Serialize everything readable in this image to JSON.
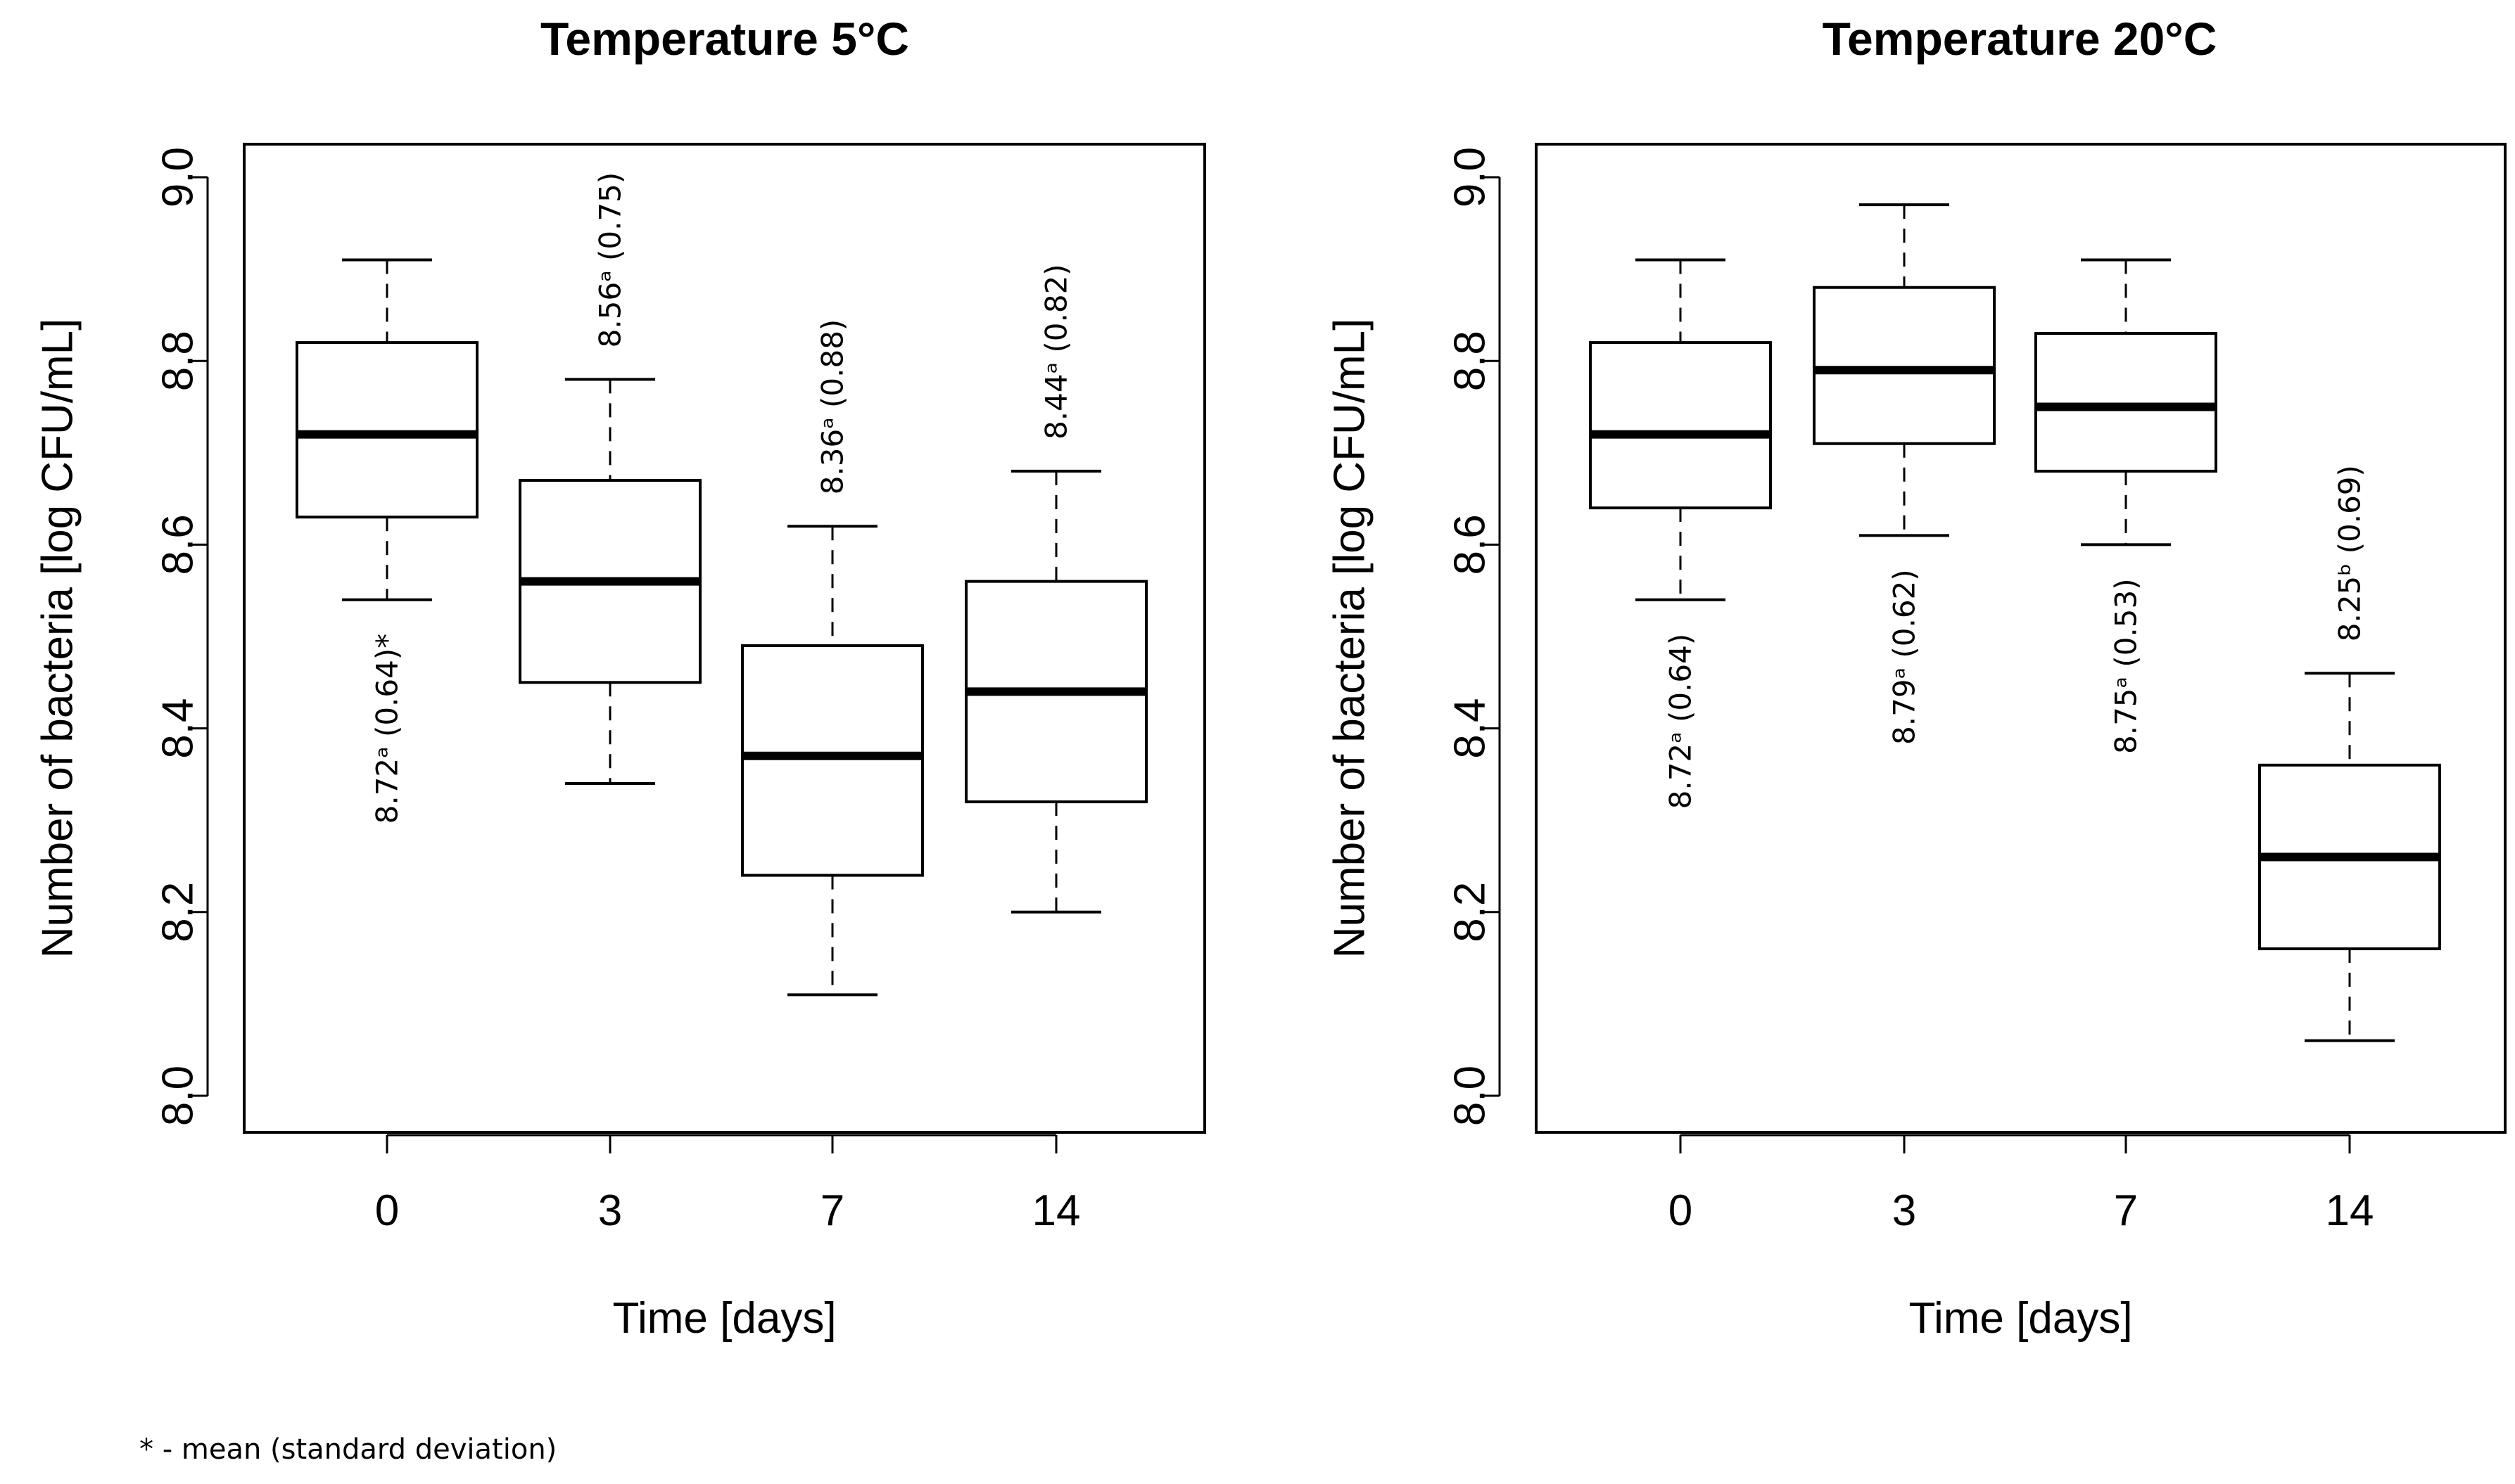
{
  "chart_data": [
    {
      "type": "boxplot",
      "title": "Temperature 5°C",
      "xlabel": "Time [days]",
      "ylabel": "Number of bacteria [log CFU/mL]",
      "ylim": [
        8.0,
        9.0
      ],
      "yticks": [
        "8.0",
        "8.2",
        "8.4",
        "8.6",
        "8.8",
        "9.0"
      ],
      "categories": [
        "0",
        "3",
        "7",
        "14"
      ],
      "boxes": [
        {
          "whisker_low": 8.54,
          "q1": 8.63,
          "median": 8.72,
          "q3": 8.82,
          "whisker_high": 8.91,
          "annotation": "8.72ᵃ (0.64)*",
          "annotation_position": "below"
        },
        {
          "whisker_low": 8.34,
          "q1": 8.45,
          "median": 8.56,
          "q3": 8.67,
          "whisker_high": 8.78,
          "annotation": "8.56ᵃ (0.75)",
          "annotation_position": "above"
        },
        {
          "whisker_low": 8.11,
          "q1": 8.24,
          "median": 8.37,
          "q3": 8.49,
          "whisker_high": 8.62,
          "annotation": "8.36ᵃ (0.88)",
          "annotation_position": "above"
        },
        {
          "whisker_low": 8.2,
          "q1": 8.32,
          "median": 8.44,
          "q3": 8.56,
          "whisker_high": 8.68,
          "annotation": "8.44ᵃ (0.82)",
          "annotation_position": "above"
        }
      ]
    },
    {
      "type": "boxplot",
      "title": "Temperature 20°C",
      "xlabel": "Time [days]",
      "ylabel": "Number of bacteria [log CFU/mL]",
      "ylim": [
        8.0,
        9.0
      ],
      "yticks": [
        "8.0",
        "8.2",
        "8.4",
        "8.6",
        "8.8",
        "9.0"
      ],
      "categories": [
        "0",
        "3",
        "7",
        "14"
      ],
      "boxes": [
        {
          "whisker_low": 8.54,
          "q1": 8.64,
          "median": 8.72,
          "q3": 8.82,
          "whisker_high": 8.91,
          "annotation": "8.72ᵃ (0.64)",
          "annotation_position": "below"
        },
        {
          "whisker_low": 8.61,
          "q1": 8.71,
          "median": 8.79,
          "q3": 8.88,
          "whisker_high": 8.97,
          "annotation": "8.79ᵃ (0.62)",
          "annotation_position": "below"
        },
        {
          "whisker_low": 8.6,
          "q1": 8.68,
          "median": 8.75,
          "q3": 8.83,
          "whisker_high": 8.91,
          "annotation": "8.75ᵃ (0.53)",
          "annotation_position": "below"
        },
        {
          "whisker_low": 8.06,
          "q1": 8.16,
          "median": 8.26,
          "q3": 8.36,
          "whisker_high": 8.46,
          "annotation": "8.25ᵇ (0.69)",
          "annotation_position": "above"
        }
      ]
    }
  ],
  "footnote": "* - mean (standard deviation)"
}
